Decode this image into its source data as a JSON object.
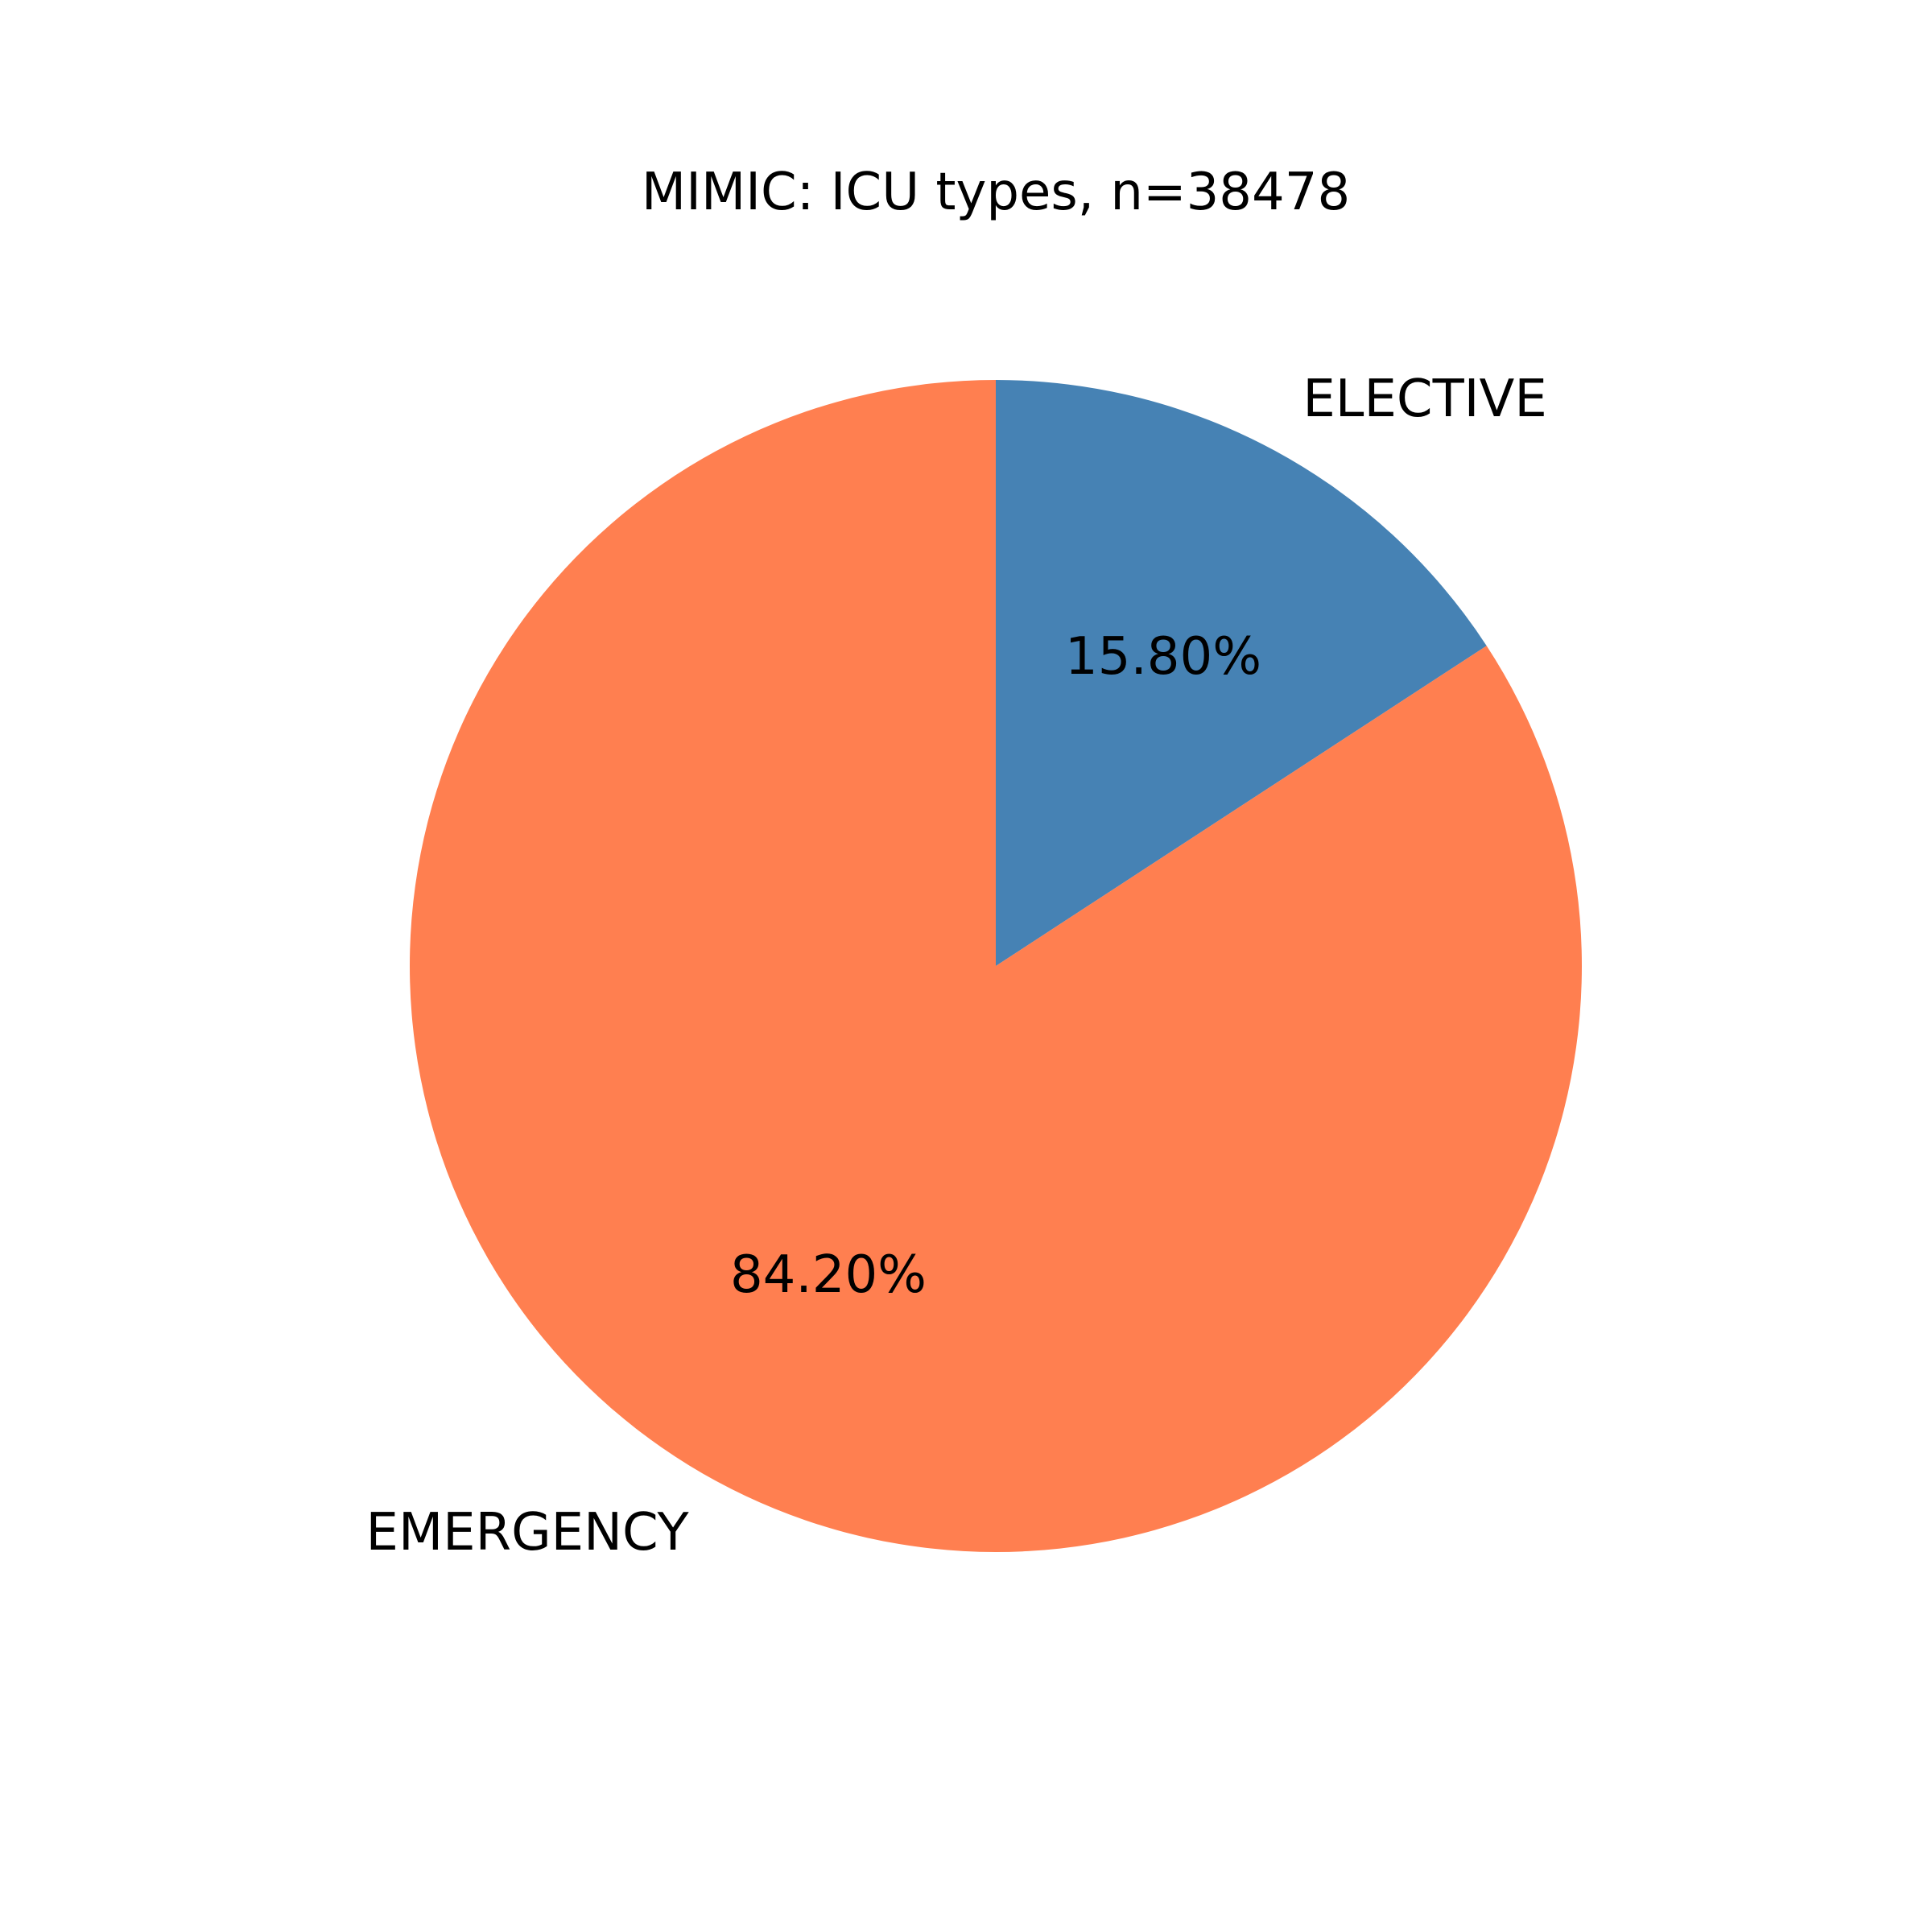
{
  "chart_data": {
    "type": "pie",
    "title": "MIMIC: ICU types, n=38478",
    "slices": [
      {
        "label": "ELECTIVE",
        "value": 15.8,
        "pct_label": "15.80%",
        "color": "#4682B4"
      },
      {
        "label": "EMERGENCY",
        "value": 84.2,
        "pct_label": "84.20%",
        "color": "#FF7F50"
      }
    ],
    "start": "top",
    "direction": "clockwise"
  }
}
